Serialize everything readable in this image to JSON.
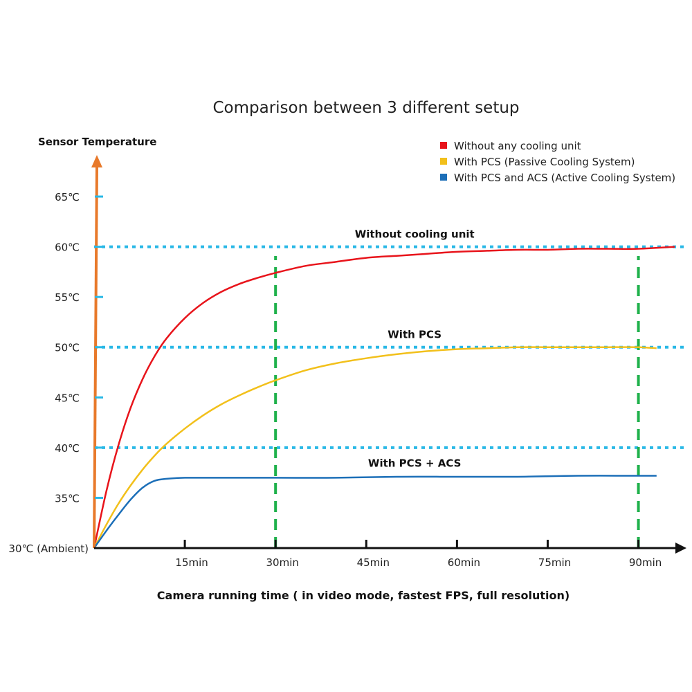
{
  "chart_data": {
    "type": "line",
    "title": "Comparison between 3 different setup",
    "ylabel": "Sensor Temperature",
    "xlabel": "Camera running time ( in video mode, fastest FPS, full resolution)",
    "x_tick_labels": [
      "15min",
      "30min",
      "45min",
      "60min",
      "75min",
      "90min"
    ],
    "x_tick_values": [
      15,
      30,
      45,
      60,
      75,
      90
    ],
    "y_tick_labels": [
      "30℃ (Ambient)",
      "35℃",
      "40℃",
      "45℃",
      "50℃",
      "55℃",
      "60℃",
      "65℃"
    ],
    "y_tick_values": [
      30,
      35,
      40,
      45,
      50,
      55,
      60,
      65
    ],
    "xlim": [
      0,
      96
    ],
    "ylim": [
      30,
      69
    ],
    "legend_position": "top-right",
    "series": [
      {
        "name": "Without any cooling unit",
        "color": "#e8141b",
        "x": [
          0,
          2,
          4,
          6,
          8,
          10,
          12,
          15,
          18,
          21,
          24,
          27,
          30,
          35,
          40,
          45,
          50,
          55,
          60,
          65,
          70,
          75,
          80,
          85,
          90,
          96
        ],
        "y": [
          30,
          35.6,
          40.2,
          43.9,
          46.8,
          49.1,
          50.9,
          52.9,
          54.4,
          55.5,
          56.3,
          56.9,
          57.4,
          58.1,
          58.5,
          58.9,
          59.1,
          59.3,
          59.5,
          59.6,
          59.7,
          59.7,
          59.8,
          59.8,
          59.8,
          60
        ]
      },
      {
        "name": "With PCS (Passive Cooling System)",
        "color": "#f2c01b",
        "x": [
          0,
          2,
          4,
          6,
          8,
          10,
          12,
          15,
          18,
          21,
          24,
          27,
          30,
          35,
          40,
          45,
          50,
          55,
          60,
          65,
          70,
          75,
          80,
          85,
          90,
          93
        ],
        "y": [
          30,
          32.3,
          34.4,
          36.2,
          37.8,
          39.2,
          40.4,
          41.9,
          43.2,
          44.3,
          45.2,
          46,
          46.7,
          47.7,
          48.4,
          48.9,
          49.3,
          49.6,
          49.8,
          49.9,
          50,
          50,
          50,
          50,
          50,
          49.9
        ]
      },
      {
        "name": "With PCS and ACS (Active Cooling System)",
        "color": "#1c6fb8",
        "x": [
          0,
          2,
          4,
          6,
          8,
          10,
          12,
          15,
          20,
          30,
          40,
          50,
          60,
          70,
          80,
          90,
          93
        ],
        "y": [
          30,
          31.7,
          33.3,
          34.8,
          36,
          36.7,
          36.9,
          37,
          37,
          37,
          37,
          37.1,
          37.1,
          37.1,
          37.2,
          37.2,
          37.2
        ]
      }
    ],
    "reference_lines": {
      "horizontal_dotted": [
        40,
        50,
        60
      ],
      "vertical_dashed": [
        30,
        90
      ],
      "horizontal_color": "#29b8e6",
      "vertical_color": "#1fb14b"
    },
    "annotations": [
      {
        "text": "Without cooling unit",
        "x": 53,
        "y": 60.9
      },
      {
        "text": "With PCS",
        "x": 53,
        "y": 50.9
      },
      {
        "text": "With PCS + ACS",
        "x": 53,
        "y": 38.1
      }
    ],
    "y_axis_color": "#e8792a",
    "x_axis_color": "#111111",
    "minor_tick_color": "#29b8e6"
  }
}
